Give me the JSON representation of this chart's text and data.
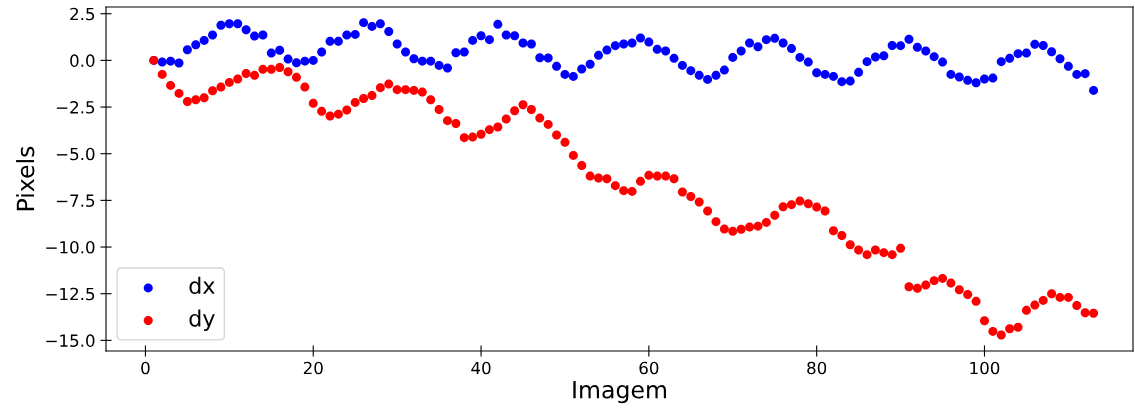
{
  "chart_data": {
    "type": "scatter",
    "xlabel": "Imagem",
    "ylabel": "Pixels",
    "x": [
      1,
      2,
      3,
      4,
      5,
      6,
      7,
      8,
      9,
      10,
      11,
      12,
      13,
      14,
      15,
      16,
      17,
      18,
      19,
      20,
      21,
      22,
      23,
      24,
      25,
      26,
      27,
      28,
      29,
      30,
      31,
      32,
      33,
      34,
      35,
      36,
      37,
      38,
      39,
      40,
      41,
      42,
      43,
      44,
      45,
      46,
      47,
      48,
      49,
      50,
      51,
      52,
      53,
      54,
      55,
      56,
      57,
      58,
      59,
      60,
      61,
      62,
      63,
      64,
      65,
      66,
      67,
      68,
      69,
      70,
      71,
      72,
      73,
      74,
      75,
      76,
      77,
      78,
      79,
      80,
      81,
      82,
      83,
      84,
      85,
      86,
      87,
      88,
      89,
      90,
      91,
      92,
      93,
      94,
      95,
      96,
      97,
      98,
      99,
      100,
      101,
      102,
      103,
      104,
      105,
      106,
      107,
      108,
      109,
      110,
      111,
      112,
      113
    ],
    "series": [
      {
        "name": "dx",
        "color": "#0000ff",
        "values": [
          0,
          -0.09,
          -0.04,
          -0.14,
          0.57,
          0.84,
          1.07,
          1.36,
          1.88,
          1.96,
          1.96,
          1.64,
          1.3,
          1.36,
          0.39,
          0.54,
          0.07,
          -0.13,
          -0.04,
          0,
          0.45,
          1.02,
          1.02,
          1.36,
          1.39,
          2.02,
          1.82,
          1.96,
          1.55,
          0.88,
          0.45,
          0.09,
          -0.04,
          -0.04,
          -0.27,
          -0.41,
          0.41,
          0.45,
          1.07,
          1.32,
          1.11,
          1.93,
          1.36,
          1.32,
          0.93,
          0.88,
          0.14,
          0.13,
          -0.32,
          -0.75,
          -0.86,
          -0.46,
          -0.21,
          0.27,
          0.55,
          0.79,
          0.88,
          0.93,
          1.2,
          0.98,
          0.59,
          0.5,
          0.11,
          -0.27,
          -0.55,
          -0.8,
          -1.02,
          -0.8,
          -0.52,
          0.16,
          0.5,
          0.93,
          0.73,
          1.11,
          1.18,
          0.93,
          0.63,
          0.16,
          -0.09,
          -0.66,
          -0.75,
          -0.86,
          -1.14,
          -1.11,
          -0.64,
          -0.07,
          0.18,
          0.25,
          0.8,
          0.79,
          1.13,
          0.7,
          0.5,
          0.2,
          -0.09,
          -0.75,
          -0.89,
          -1.07,
          -1.2,
          -1.0,
          -0.95,
          -0.07,
          0.11,
          0.36,
          0.39,
          0.86,
          0.8,
          0.46,
          0.09,
          -0.32,
          -0.75,
          -0.71,
          -1.61
        ]
      },
      {
        "name": "dy",
        "color": "#ff0000",
        "values": [
          0,
          -0.75,
          -1.34,
          -1.77,
          -2.2,
          -2.11,
          -2.0,
          -1.63,
          -1.43,
          -1.18,
          -1.0,
          -0.7,
          -0.8,
          -0.48,
          -0.48,
          -0.38,
          -0.61,
          -0.91,
          -1.43,
          -2.3,
          -2.73,
          -2.98,
          -2.88,
          -2.66,
          -2.25,
          -2.04,
          -1.88,
          -1.46,
          -1.27,
          -1.57,
          -1.57,
          -1.61,
          -1.7,
          -2.11,
          -2.63,
          -3.23,
          -3.38,
          -4.14,
          -4.11,
          -3.96,
          -3.71,
          -3.57,
          -3.14,
          -2.7,
          -2.38,
          -2.63,
          -3.09,
          -3.43,
          -4.0,
          -4.39,
          -5.09,
          -5.63,
          -6.2,
          -6.3,
          -6.34,
          -6.71,
          -6.98,
          -7.02,
          -6.48,
          -6.16,
          -6.2,
          -6.2,
          -6.34,
          -7.05,
          -7.29,
          -7.59,
          -8.07,
          -8.64,
          -9.04,
          -9.16,
          -9.05,
          -8.93,
          -8.88,
          -8.68,
          -8.3,
          -7.84,
          -7.73,
          -7.54,
          -7.68,
          -7.86,
          -8.07,
          -9.13,
          -9.38,
          -9.88,
          -10.16,
          -10.41,
          -10.16,
          -10.3,
          -10.41,
          -10.07,
          -12.13,
          -12.21,
          -12.04,
          -11.8,
          -11.68,
          -11.93,
          -12.29,
          -12.54,
          -12.91,
          -13.95,
          -14.52,
          -14.71,
          -14.38,
          -14.3,
          -13.39,
          -13.11,
          -12.86,
          -12.5,
          -12.7,
          -12.7,
          -13.13,
          -13.52,
          -13.55
        ]
      }
    ],
    "xlim": [
      -4.7,
      117.7
    ],
    "ylim": [
      -15.57,
      2.86
    ],
    "xticks": [
      0,
      20,
      40,
      60,
      80,
      100
    ],
    "yticks": [
      {
        "value": 2.5,
        "label": "2.5"
      },
      {
        "value": 0,
        "label": "0.0"
      },
      {
        "value": -2.5,
        "label": "−2.5"
      },
      {
        "value": -5,
        "label": "−5.0"
      },
      {
        "value": -7.5,
        "label": "−7.5"
      },
      {
        "value": -10,
        "label": "−10.0"
      },
      {
        "value": -12.5,
        "label": "−12.5"
      },
      {
        "value": -15,
        "label": "−15.0"
      }
    ],
    "marker": "circle",
    "legend": "bottom left",
    "grid": false
  }
}
